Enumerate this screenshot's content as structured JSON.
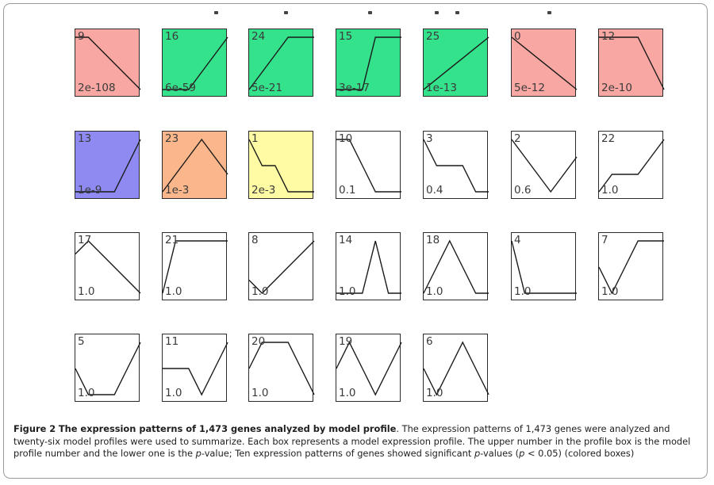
{
  "figure": {
    "caption_label": "Figure 2",
    "caption_title": "The expression patterns of 1,473 genes analyzed by model profile",
    "caption_body_1": ". The expression patterns of 1,473 genes were analyzed and twenty-six model profiles were used to summarize. Each box represents a model expression profile. The upper number in the profile box is the model profile number and the lower one is the ",
    "p_italic_1": "p",
    "caption_body_2": "-value; Ten expression patterns of genes showed significant ",
    "p_italic_2": "p",
    "caption_body_3": "-values (",
    "p_italic_3": "p",
    "caption_body_4": " < 0.05) (colored boxes)"
  },
  "colors": {
    "red": "#f9a7a3",
    "green": "#35e28c",
    "blue": "#8e8af2",
    "orange": "#fbb78b",
    "yellow": "#fffba4",
    "white": "#ffffff",
    "line": "#1a1a1a"
  },
  "chart_data": {
    "type": "line",
    "time_points": 6,
    "profiles": [
      {
        "number": "9",
        "p_value": "2e-108",
        "color": "red",
        "values": [
          1,
          1,
          0,
          -1,
          -2,
          -3
        ]
      },
      {
        "number": "16",
        "p_value": "6e-59",
        "color": "green",
        "values": [
          0,
          0,
          0,
          1,
          2,
          3
        ]
      },
      {
        "number": "24",
        "p_value": "5e-21",
        "color": "green",
        "values": [
          0,
          1,
          2,
          3,
          3,
          3
        ]
      },
      {
        "number": "15",
        "p_value": "3e-17",
        "color": "green",
        "values": [
          0,
          0,
          0,
          1,
          1,
          1
        ]
      },
      {
        "number": "25",
        "p_value": "1e-13",
        "color": "green",
        "values": [
          0,
          1,
          2,
          3,
          4,
          5
        ]
      },
      {
        "number": "0",
        "p_value": "5e-12",
        "color": "red",
        "values": [
          0,
          -1,
          -2,
          -3,
          -4,
          -5
        ]
      },
      {
        "number": "12",
        "p_value": "2e-10",
        "color": "red",
        "values": [
          0,
          0,
          0,
          0,
          -1,
          -2
        ]
      },
      {
        "number": "13",
        "p_value": "1e-9",
        "color": "blue",
        "values": [
          0,
          0,
          0,
          0,
          1,
          2
        ]
      },
      {
        "number": "23",
        "p_value": "1e-3",
        "color": "orange",
        "values": [
          0,
          1,
          2,
          3,
          2,
          1
        ]
      },
      {
        "number": "1",
        "p_value": "2e-3",
        "color": "yellow",
        "values": [
          0,
          -1,
          -1,
          -2,
          -2,
          -2
        ]
      },
      {
        "number": "10",
        "p_value": "0.1",
        "color": "white",
        "values": [
          0,
          0,
          -1,
          -2,
          -2,
          -2
        ]
      },
      {
        "number": "3",
        "p_value": "0.4",
        "color": "white",
        "values": [
          0,
          -1,
          -1,
          -1,
          -2,
          -2
        ]
      },
      {
        "number": "2",
        "p_value": "0.6",
        "color": "white",
        "values": [
          0,
          -1,
          -2,
          -3,
          -2,
          -1
        ]
      },
      {
        "number": "22",
        "p_value": "1.0",
        "color": "white",
        "values": [
          0,
          1,
          1,
          1,
          2,
          3
        ]
      },
      {
        "number": "17",
        "p_value": "1.0",
        "color": "white",
        "values": [
          0,
          2,
          0,
          -2,
          -4,
          -6
        ]
      },
      {
        "number": "21",
        "p_value": "1.0",
        "color": "white",
        "values": [
          0,
          1,
          1,
          1,
          1,
          1
        ]
      },
      {
        "number": "8",
        "p_value": "1.0",
        "color": "white",
        "values": [
          0,
          -1,
          0,
          1,
          2,
          3
        ]
      },
      {
        "number": "14",
        "p_value": "1.0",
        "color": "white",
        "values": [
          0,
          0,
          0,
          1,
          0,
          0
        ]
      },
      {
        "number": "18",
        "p_value": "1.0",
        "color": "white",
        "values": [
          0,
          1,
          2,
          1,
          0,
          0
        ]
      },
      {
        "number": "4",
        "p_value": "1.0",
        "color": "white",
        "values": [
          0,
          -1,
          -1,
          -1,
          -1,
          -1
        ]
      },
      {
        "number": "7",
        "p_value": "1.0",
        "color": "white",
        "values": [
          0,
          -1,
          0,
          1,
          1,
          1
        ]
      },
      {
        "number": "5",
        "p_value": "1.0",
        "color": "white",
        "values": [
          0,
          -1,
          -1,
          -1,
          0,
          1
        ]
      },
      {
        "number": "11",
        "p_value": "1.0",
        "color": "white",
        "values": [
          0,
          0,
          0,
          -1,
          0,
          1
        ]
      },
      {
        "number": "20",
        "p_value": "1.0",
        "color": "white",
        "values": [
          0,
          1,
          1,
          1,
          0,
          -1
        ]
      },
      {
        "number": "19",
        "p_value": "1.0",
        "color": "white",
        "values": [
          0,
          1,
          0,
          -1,
          0,
          1
        ]
      },
      {
        "number": "6",
        "p_value": "1.0",
        "color": "white",
        "values": [
          0,
          -1,
          0,
          1,
          0,
          -1
        ]
      }
    ]
  }
}
